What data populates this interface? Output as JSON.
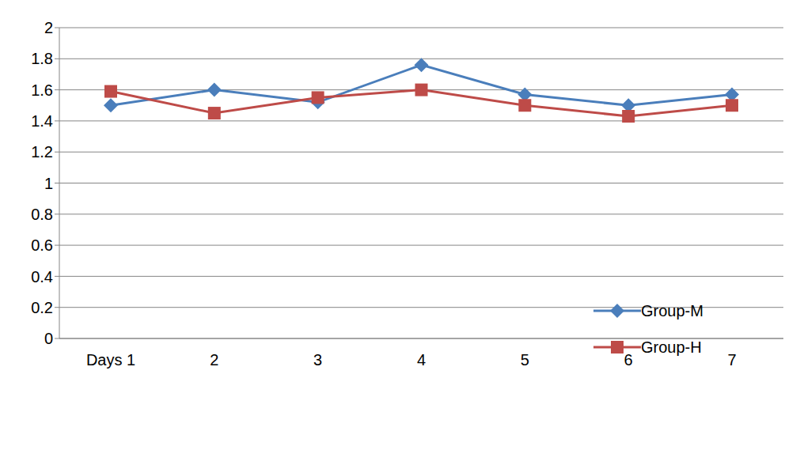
{
  "chart_data": {
    "type": "line",
    "categories": [
      "Days 1",
      "2",
      "3",
      "4",
      "5",
      "6",
      "7"
    ],
    "series": [
      {
        "name": "Group-M",
        "color": "#4a7ebb",
        "marker": "diamond",
        "values": [
          1.5,
          1.6,
          1.52,
          1.76,
          1.57,
          1.5,
          1.57
        ]
      },
      {
        "name": "Group-H",
        "color": "#be4b48",
        "marker": "square",
        "values": [
          1.59,
          1.45,
          1.55,
          1.6,
          1.5,
          1.43,
          1.5
        ]
      }
    ],
    "ylim": [
      0,
      2
    ],
    "yticks": [
      0,
      0.2,
      0.4,
      0.6,
      0.8,
      1,
      1.2,
      1.4,
      1.6,
      1.8,
      2
    ],
    "grid": true,
    "legend": "lower right"
  }
}
